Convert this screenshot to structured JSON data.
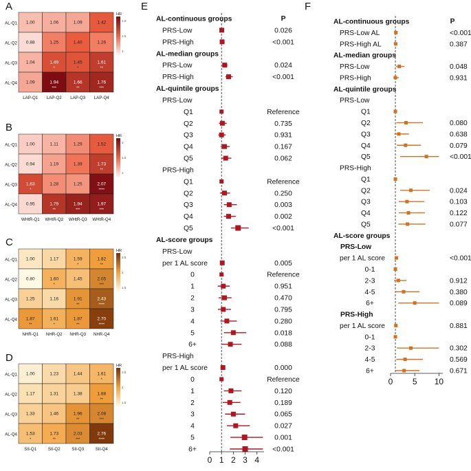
{
  "panel_letters": [
    "A",
    "B",
    "C",
    "D",
    "E",
    "F"
  ],
  "chart_data": [
    {
      "type": "heatmap",
      "panel": "A",
      "rows": [
        "AL-Q1",
        "AL-Q2",
        "AL-Q3",
        "AL-Q4"
      ],
      "columns": [
        "LAP-Q1",
        "LAP-Q2",
        "LAP-Q3",
        "LAP-Q4"
      ],
      "values": [
        [
          1.0,
          1.06,
          1.09,
          1.42
        ],
        [
          0.88,
          1.25,
          1.4,
          1.26
        ],
        [
          1.04,
          1.49,
          1.45,
          1.61
        ],
        [
          1.09,
          1.94,
          1.66,
          1.76
        ]
      ],
      "stars": [
        [
          "",
          "",
          "",
          ""
        ],
        [
          "",
          "",
          "",
          ""
        ],
        [
          "",
          "*",
          "*",
          "**"
        ],
        [
          "",
          "***",
          "**",
          "***"
        ]
      ],
      "legend_title": "HR",
      "legend_ticks": [
        "1.8",
        "1.5",
        "1"
      ],
      "scale": {
        "min": 0.8,
        "max": 1.95,
        "low": "#fdf0ec",
        "mid": "#ee6040",
        "high": "#7b0c12"
      }
    },
    {
      "type": "heatmap",
      "panel": "B",
      "rows": [
        "AL-Q1",
        "AL-Q2",
        "AL-Q3",
        "AL-Q4"
      ],
      "columns": [
        "WHtR-Q1",
        "WHtR-Q2",
        "WHtR-Q3",
        "WHtR-Q4"
      ],
      "values": [
        [
          1.0,
          1.11,
          1.29,
          1.52
        ],
        [
          0.94,
          1.19,
          1.39,
          1.73
        ],
        [
          1.63,
          1.28,
          1.25,
          2.07
        ],
        [
          0.95,
          1.79,
          1.94,
          1.97
        ]
      ],
      "stars": [
        [
          "",
          "",
          "",
          ""
        ],
        [
          "",
          "",
          "",
          "**"
        ],
        [
          "*",
          "",
          "",
          "****"
        ],
        [
          "",
          "**",
          "***",
          "***"
        ]
      ],
      "legend_title": "HR",
      "legend_ticks": [
        "2",
        "1.5",
        "1"
      ],
      "scale": {
        "min": 0.85,
        "max": 2.1,
        "low": "#fdf0ec",
        "mid": "#ee6040",
        "high": "#7b0c12"
      }
    },
    {
      "type": "heatmap",
      "panel": "C",
      "rows": [
        "AL-Q1",
        "AL-Q2",
        "AL-Q3",
        "AL-Q4"
      ],
      "columns": [
        "NHR-Q1",
        "NHR-Q2",
        "NHR-Q3",
        "NHR-Q4"
      ],
      "values": [
        [
          1.0,
          1.17,
          1.59,
          1.82
        ],
        [
          0.8,
          1.6,
          1.45,
          2.05
        ],
        [
          1.25,
          1.16,
          1.91,
          2.43
        ],
        [
          1.87,
          1.61,
          1.87,
          2.7
        ]
      ],
      "stars": [
        [
          "",
          "",
          "*",
          "**"
        ],
        [
          "",
          "*",
          "",
          "***"
        ],
        [
          "",
          "",
          "**",
          "****"
        ],
        [
          "**",
          "*",
          "**",
          "****"
        ]
      ],
      "legend_title": "HR",
      "legend_ticks": [
        "2.5",
        "2",
        "1.5"
      ],
      "scale": {
        "min": 0.8,
        "max": 2.8,
        "low": "#fef9e4",
        "mid": "#f2a03c",
        "high": "#7a3408"
      }
    },
    {
      "type": "heatmap",
      "panel": "D",
      "rows": [
        "AL-Q1",
        "AL-Q2",
        "AL-Q3",
        "AL-Q4"
      ],
      "columns": [
        "SII-Q1",
        "SII-Q2",
        "SII-Q3",
        "SII-Q4"
      ],
      "values": [
        [
          1.0,
          1.23,
          1.44,
          1.61
        ],
        [
          1.17,
          1.31,
          1.38,
          1.88
        ],
        [
          1.33,
          1.46,
          1.96,
          2.08
        ],
        [
          1.53,
          1.73,
          2.03,
          2.76
        ]
      ],
      "stars": [
        [
          "",
          "",
          "",
          "*"
        ],
        [
          "",
          "",
          "",
          "**"
        ],
        [
          "",
          "",
          "**",
          "***"
        ],
        [
          "*",
          "**",
          "***",
          "****"
        ]
      ],
      "legend_title": "HR",
      "legend_ticks": [
        "2.5",
        "2",
        "1.5"
      ],
      "scale": {
        "min": 0.9,
        "max": 2.8,
        "low": "#fef9e4",
        "mid": "#f2a03c",
        "high": "#7a3408"
      }
    },
    {
      "type": "forest",
      "panel": "E",
      "p_header": "P",
      "color": "#b0161f",
      "xlim": [
        0,
        4.6
      ],
      "xticks": [
        0,
        1,
        2,
        3,
        4
      ],
      "ref_line": 1,
      "rows": [
        {
          "label": "AL-continuous groups",
          "kind": "header",
          "p": ""
        },
        {
          "label": "PRS-Low",
          "kind": "item",
          "hr": 1.02,
          "lo": 0.97,
          "hi": 1.08,
          "p": "0.026"
        },
        {
          "label": "PRS-High",
          "kind": "item",
          "hr": 1.05,
          "lo": 0.99,
          "hi": 1.12,
          "p": "<0.001"
        },
        {
          "label": "AL-median groups",
          "kind": "header",
          "p": ""
        },
        {
          "label": "PRS-Low",
          "kind": "item",
          "hr": 1.27,
          "lo": 1.05,
          "hi": 1.5,
          "p": "0.024"
        },
        {
          "label": "PRS-High",
          "kind": "item",
          "hr": 1.6,
          "lo": 1.33,
          "hi": 1.95,
          "p": "<0.001"
        },
        {
          "label": "AL-quintile groups",
          "kind": "header",
          "p": ""
        },
        {
          "label": "PRS-Low",
          "kind": "sub",
          "p": ""
        },
        {
          "label": "Q1",
          "kind": "item",
          "hr": 1.0,
          "lo": 1.0,
          "hi": 1.0,
          "p": "Reference"
        },
        {
          "label": "Q2",
          "kind": "item",
          "hr": 1.07,
          "lo": 0.78,
          "hi": 1.44,
          "p": "0.735"
        },
        {
          "label": "Q3",
          "kind": "item",
          "hr": 1.0,
          "lo": 0.73,
          "hi": 1.36,
          "p": "0.931"
        },
        {
          "label": "Q4",
          "kind": "item",
          "hr": 1.25,
          "lo": 0.93,
          "hi": 1.7,
          "p": "0.167"
        },
        {
          "label": "Q5",
          "kind": "item",
          "hr": 1.35,
          "lo": 1.0,
          "hi": 1.83,
          "p": "0.062"
        },
        {
          "label": "PRS-High",
          "kind": "sub",
          "p": ""
        },
        {
          "label": "Q1",
          "kind": "item",
          "hr": 1.0,
          "lo": 1.0,
          "hi": 1.0,
          "p": "Reference"
        },
        {
          "label": "Q2",
          "kind": "item",
          "hr": 1.25,
          "lo": 0.86,
          "hi": 1.72,
          "p": "0.250"
        },
        {
          "label": "Q3",
          "kind": "item",
          "hr": 1.65,
          "lo": 1.2,
          "hi": 2.3,
          "p": "0.003"
        },
        {
          "label": "Q4",
          "kind": "item",
          "hr": 1.6,
          "lo": 1.2,
          "hi": 2.2,
          "p": "0.002"
        },
        {
          "label": "Q5",
          "kind": "item",
          "hr": 2.4,
          "lo": 1.8,
          "hi": 3.3,
          "p": "<0.001"
        },
        {
          "label": "AL-score groups",
          "kind": "header",
          "p": ""
        },
        {
          "label": "PRS-Low",
          "kind": "sub",
          "p": ""
        },
        {
          "label": "per 1 AL score",
          "kind": "item",
          "hr": 1.06,
          "lo": 1.02,
          "hi": 1.11,
          "p": "0.005"
        },
        {
          "label": "0",
          "kind": "item",
          "hr": 1.0,
          "lo": 1.0,
          "hi": 1.0,
          "p": "Reference"
        },
        {
          "label": "1",
          "kind": "item",
          "hr": 1.15,
          "lo": 0.68,
          "hi": 1.7,
          "p": "0.951"
        },
        {
          "label": "2",
          "kind": "item",
          "hr": 1.25,
          "lo": 0.75,
          "hi": 1.85,
          "p": "0.470"
        },
        {
          "label": "3",
          "kind": "item",
          "hr": 1.15,
          "lo": 0.7,
          "hi": 1.8,
          "p": "0.795"
        },
        {
          "label": "4",
          "kind": "item",
          "hr": 1.45,
          "lo": 0.9,
          "hi": 2.3,
          "p": "0.280"
        },
        {
          "label": "5",
          "kind": "item",
          "hr": 2.0,
          "lo": 1.2,
          "hi": 3.1,
          "p": "0.018"
        },
        {
          "label": "6+",
          "kind": "item",
          "hr": 1.75,
          "lo": 1.05,
          "hi": 2.7,
          "p": "0.088"
        },
        {
          "label": "PRS-High",
          "kind": "sub",
          "p": ""
        },
        {
          "label": "per 1 AL score",
          "kind": "item",
          "hr": 1.12,
          "lo": 1.07,
          "hi": 1.17,
          "p": "0.000"
        },
        {
          "label": "0",
          "kind": "item",
          "hr": 1.0,
          "lo": 1.0,
          "hi": 1.0,
          "p": "Reference"
        },
        {
          "label": "1",
          "kind": "item",
          "hr": 1.8,
          "lo": 1.2,
          "hi": 2.7,
          "p": "0.120"
        },
        {
          "label": "2",
          "kind": "item",
          "hr": 1.7,
          "lo": 1.1,
          "hi": 2.6,
          "p": "0.189"
        },
        {
          "label": "3",
          "kind": "item",
          "hr": 2.0,
          "lo": 1.3,
          "hi": 3.0,
          "p": "0.065"
        },
        {
          "label": "4",
          "kind": "item",
          "hr": 2.2,
          "lo": 1.45,
          "hi": 3.4,
          "p": "0.027"
        },
        {
          "label": "5",
          "kind": "item",
          "hr": 2.95,
          "lo": 1.75,
          "hi": 4.5,
          "p": "0.001"
        },
        {
          "label": "6+",
          "kind": "item",
          "hr": 3.0,
          "lo": 1.7,
          "hi": 4.5,
          "p": "<0.001"
        }
      ]
    },
    {
      "type": "forest",
      "panel": "F",
      "p_header": "P",
      "color": "#d07222",
      "xlim": [
        0,
        10.8
      ],
      "xticks": [
        0,
        5,
        10
      ],
      "ref_line": 1,
      "rows": [
        {
          "label": "AL-continuous groups",
          "kind": "header",
          "p": ""
        },
        {
          "label": "PRS-Low AL",
          "kind": "item",
          "hr": 1.1,
          "lo": 1.0,
          "hi": 1.3,
          "p": "<0.001"
        },
        {
          "label": "PRS-High AL",
          "kind": "item",
          "hr": 1.05,
          "lo": 0.95,
          "hi": 1.25,
          "p": "0.387"
        },
        {
          "label": "AL-median groups",
          "kind": "header",
          "p": ""
        },
        {
          "label": "PRS-Low",
          "kind": "item",
          "hr": 1.8,
          "lo": 1.1,
          "hi": 2.9,
          "p": "0.048"
        },
        {
          "label": "PRS-High",
          "kind": "item",
          "hr": 1.0,
          "lo": 0.6,
          "hi": 1.7,
          "p": "0.931"
        },
        {
          "label": "AL-quintile groups",
          "kind": "header",
          "p": ""
        },
        {
          "label": "PRS-Low",
          "kind": "sub",
          "p": ""
        },
        {
          "label": "Q1",
          "kind": "item",
          "hr": 1.0,
          "lo": 1.0,
          "hi": 1.0,
          "p": ""
        },
        {
          "label": "Q2",
          "kind": "item",
          "hr": 3.2,
          "lo": 1.2,
          "hi": 6.7,
          "p": "0.080"
        },
        {
          "label": "Q3",
          "kind": "item",
          "hr": 1.7,
          "lo": 0.8,
          "hi": 3.8,
          "p": "0.638"
        },
        {
          "label": "Q4",
          "kind": "item",
          "hr": 3.1,
          "lo": 1.3,
          "hi": 6.3,
          "p": "0.079"
        },
        {
          "label": "Q5",
          "kind": "item",
          "hr": 7.4,
          "lo": 2.0,
          "hi": 10.0,
          "p": "<0.001"
        },
        {
          "label": "PRS-High",
          "kind": "sub",
          "p": ""
        },
        {
          "label": "Q1",
          "kind": "item",
          "hr": 1.0,
          "lo": 1.0,
          "hi": 1.0,
          "p": ""
        },
        {
          "label": "Q2",
          "kind": "item",
          "hr": 4.2,
          "lo": 2.0,
          "hi": 8.1,
          "p": "0.024"
        },
        {
          "label": "Q3",
          "kind": "item",
          "hr": 3.4,
          "lo": 1.7,
          "hi": 7.0,
          "p": "0.103"
        },
        {
          "label": "Q4",
          "kind": "item",
          "hr": 3.7,
          "lo": 1.7,
          "hi": 7.1,
          "p": "0.122"
        },
        {
          "label": "Q5",
          "kind": "item",
          "hr": 3.5,
          "lo": 1.6,
          "hi": 7.2,
          "p": "0.077"
        },
        {
          "label": "AL-score groups",
          "kind": "header",
          "p": ""
        },
        {
          "label": "PRS-Low",
          "kind": "bsub",
          "p": ""
        },
        {
          "label": "per 1 AL score",
          "kind": "item",
          "hr": 1.2,
          "lo": 1.05,
          "hi": 1.4,
          "p": "<0.001"
        },
        {
          "label": "0-1",
          "kind": "item",
          "hr": 1.0,
          "lo": 1.0,
          "hi": 1.0,
          "p": ""
        },
        {
          "label": "2-3",
          "kind": "item",
          "hr": 1.6,
          "lo": 0.7,
          "hi": 3.3,
          "p": "0.912"
        },
        {
          "label": "4-5",
          "kind": "item",
          "hr": 2.7,
          "lo": 1.0,
          "hi": 6.0,
          "p": "0.380"
        },
        {
          "label": "6+",
          "kind": "item",
          "hr": 5.0,
          "lo": 1.6,
          "hi": 10.0,
          "p": "0.089"
        },
        {
          "label": "PRS-High",
          "kind": "bsub",
          "p": ""
        },
        {
          "label": "per 1 AL score",
          "kind": "item",
          "hr": 1.1,
          "lo": 0.95,
          "hi": 1.3,
          "p": "0.881"
        },
        {
          "label": "0-1",
          "kind": "item",
          "hr": 1.0,
          "lo": 1.0,
          "hi": 1.0,
          "p": ""
        },
        {
          "label": "2-3",
          "kind": "item",
          "hr": 4.2,
          "lo": 1.3,
          "hi": 10.0,
          "p": "0.302"
        },
        {
          "label": "4-5",
          "kind": "item",
          "hr": 3.0,
          "lo": 1.2,
          "hi": 6.7,
          "p": "0.569"
        },
        {
          "label": "6+",
          "kind": "item",
          "hr": 2.8,
          "lo": 1.1,
          "hi": 6.0,
          "p": "0.671"
        }
      ]
    }
  ]
}
